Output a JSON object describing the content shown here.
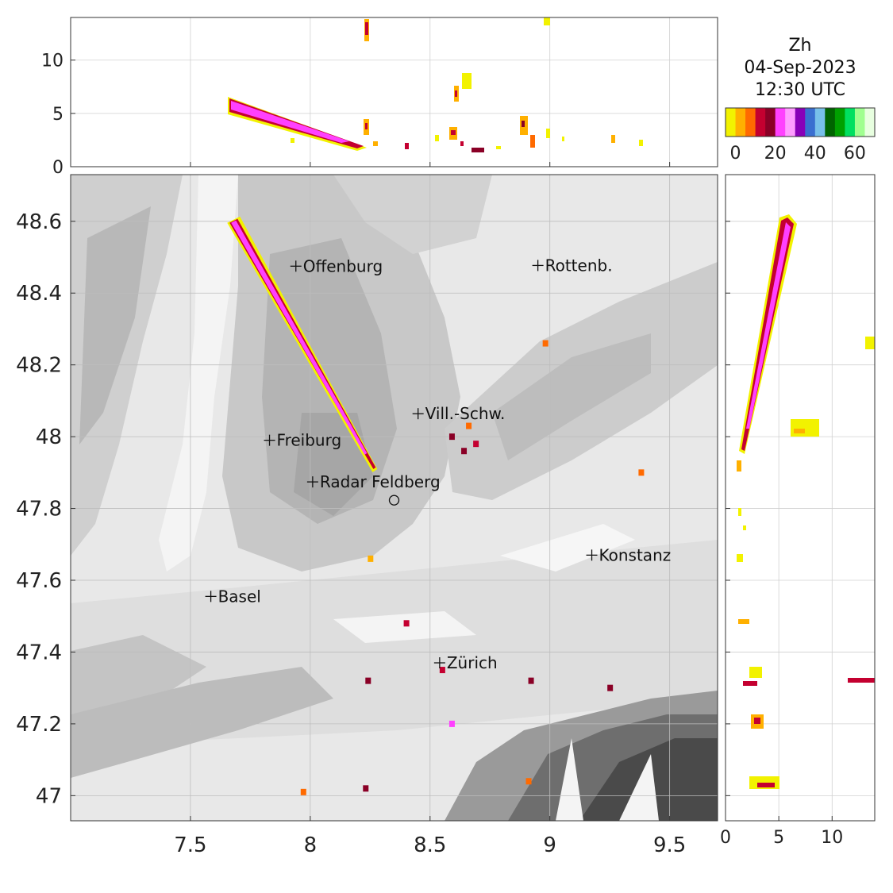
{
  "colorbar": {
    "title_lines": [
      "Zh",
      "04-Sep-2023",
      "12:30 UTC"
    ],
    "colors": [
      "#f2f200",
      "#ffb000",
      "#ff6a00",
      "#c40030",
      "#8a0026",
      "#ff40ff",
      "#ff9cff",
      "#8800b8",
      "#3a6fd0",
      "#78c0ea",
      "#006400",
      "#00a000",
      "#00e060",
      "#a0ff90",
      "#e8ffe0"
    ],
    "ticks": [
      "0",
      "20",
      "40",
      "60"
    ],
    "range": [
      -5,
      70
    ]
  },
  "chart_data": [
    {
      "type": "heatmap",
      "name": "plan-view",
      "x_range": [
        7.0,
        9.7
      ],
      "y_range": [
        46.93,
        48.73
      ],
      "x_ticks": [
        7.5,
        8,
        8.5,
        9,
        9.5
      ],
      "x_tick_labels": [
        "7.5",
        "8",
        "8.5",
        "9",
        "9.5"
      ],
      "y_ticks": [
        47,
        47.2,
        47.4,
        47.6,
        47.8,
        48,
        48.2,
        48.4,
        48.6
      ],
      "y_tick_labels": [
        "47",
        "47.2",
        "47.4",
        "47.6",
        "47.8",
        "48",
        "48.2",
        "48.4",
        "48.6"
      ],
      "grid": true,
      "radar_site": {
        "lon": 8.35,
        "lat": 47.823
      },
      "cities": [
        {
          "name": "Offenburg",
          "lon": 7.94,
          "lat": 48.475
        },
        {
          "name": "Rottenb.",
          "lon": 8.95,
          "lat": 48.477
        },
        {
          "name": "Vill.-Schw.",
          "lon": 8.45,
          "lat": 48.064
        },
        {
          "name": "Freiburg",
          "lon": 7.83,
          "lat": 47.99
        },
        {
          "name": "Radar Feldberg",
          "lon": 8.01,
          "lat": 47.874
        },
        {
          "name": "Konstanz",
          "lon": 9.175,
          "lat": 47.67
        },
        {
          "name": "Basel",
          "lon": 7.585,
          "lat": 47.555
        },
        {
          "name": "Zürich",
          "lon": 8.54,
          "lat": 47.37
        }
      ],
      "echoes": [
        {
          "lon1": 7.68,
          "lat1": 48.6,
          "lon2": 8.27,
          "lat2": 47.91,
          "z": 25
        },
        {
          "lon": 8.98,
          "lat": 48.26,
          "z": 5
        },
        {
          "lon": 8.66,
          "lat": 48.03,
          "z": 5
        },
        {
          "lon": 8.59,
          "lat": 48.0,
          "z": 15
        },
        {
          "lon": 8.69,
          "lat": 47.98,
          "z": 10
        },
        {
          "lon": 8.64,
          "lat": 47.96,
          "z": 15
        },
        {
          "lon": 9.38,
          "lat": 47.9,
          "z": 5
        },
        {
          "lon": 8.55,
          "lat": 47.35,
          "z": 10
        },
        {
          "lon": 8.59,
          "lat": 47.2,
          "z": 20
        },
        {
          "lon": 8.24,
          "lat": 47.32,
          "z": 15
        },
        {
          "lon": 8.92,
          "lat": 47.32,
          "z": 15
        },
        {
          "lon": 8.4,
          "lat": 47.48,
          "z": 10
        },
        {
          "lon": 7.97,
          "lat": 47.01,
          "z": 5
        },
        {
          "lon": 8.23,
          "lat": 47.02,
          "z": 15
        },
        {
          "lon": 8.91,
          "lat": 47.04,
          "z": 5
        },
        {
          "lon": 8.25,
          "lat": 47.66,
          "z": 3
        },
        {
          "lon": 9.25,
          "lat": 47.3,
          "z": 15
        }
      ]
    },
    {
      "type": "heatmap",
      "name": "lon-height-section",
      "x_range": [
        7.0,
        9.7
      ],
      "y_range": [
        0,
        14
      ],
      "y_ticks": [
        0,
        5,
        10
      ],
      "y_tick_labels": [
        "0",
        "5",
        "10"
      ],
      "grid": true
    },
    {
      "type": "heatmap",
      "name": "height-lat-section",
      "x_range": [
        0,
        14
      ],
      "y_range": [
        46.93,
        48.73
      ],
      "x_ticks": [
        0,
        5,
        10
      ],
      "x_tick_labels": [
        "0",
        "5",
        "10"
      ],
      "grid": true
    }
  ]
}
